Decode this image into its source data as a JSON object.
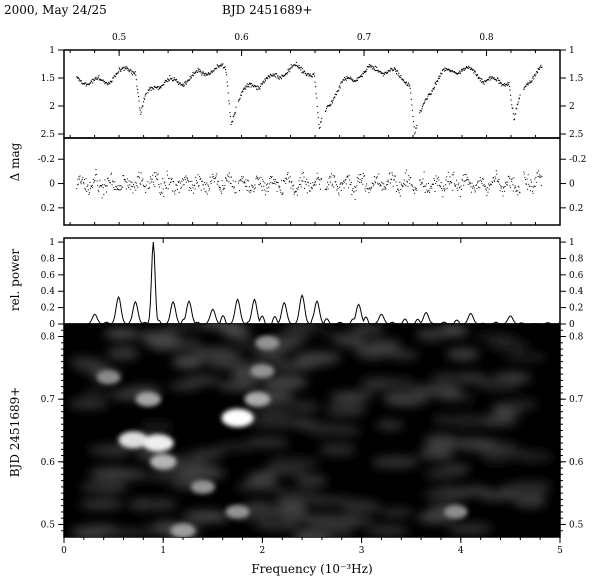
{
  "header": {
    "left": "2000, May 24/25",
    "center": "BJD 2451689+"
  },
  "panel_labels": {
    "dmag": "Δ mag",
    "power": "rel. power",
    "bjd": "BJD 2451689+",
    "frequency": "Frequency (10⁻³Hz)"
  },
  "chart_data": [
    {
      "type": "scatter",
      "panel": "light-curve",
      "x_top_label": "BJD 2451689+",
      "ylabel": "Δ mag",
      "xlim": [
        0.455,
        0.86
      ],
      "ylim": [
        2.5,
        1.0
      ],
      "y_inverted": true,
      "x_ticks": [
        "0.5",
        "0.6",
        "0.7",
        "0.8"
      ],
      "y_ticks": [
        "1",
        "1.5",
        "2",
        "2.5"
      ],
      "segments": [
        [
          0.465,
          0.522
        ],
        [
          0.523,
          0.595
        ],
        [
          0.597,
          0.665
        ],
        [
          0.668,
          0.743
        ],
        [
          0.745,
          0.827
        ],
        [
          0.83,
          0.845
        ]
      ],
      "baseline_mag": 1.45,
      "eclipses": [
        {
          "x": 0.517,
          "depth_mag": 2.25
        },
        {
          "x": 0.591,
          "depth_mag": 2.3
        },
        {
          "x": 0.663,
          "depth_mag": 2.45
        },
        {
          "x": 0.741,
          "depth_mag": 2.4
        },
        {
          "x": 0.822,
          "depth_mag": 2.2
        }
      ]
    },
    {
      "type": "scatter",
      "panel": "residuals",
      "ylabel": "Δ mag",
      "xlim": [
        0.455,
        0.86
      ],
      "ylim": [
        0.3,
        -0.35
      ],
      "y_inverted": true,
      "y_ticks": [
        "-0.2",
        "0",
        "0.2"
      ],
      "scatter_amplitude": 0.15
    },
    {
      "type": "line",
      "panel": "power-spectrum",
      "ylabel": "rel. power",
      "xlim": [
        0,
        5
      ],
      "ylim": [
        0,
        1.05
      ],
      "y_ticks": [
        "0",
        "0.2",
        "0.4",
        "0.6",
        "0.8",
        "1"
      ],
      "peaks": [
        {
          "x": 0.31,
          "y": 0.12
        },
        {
          "x": 0.55,
          "y": 0.33
        },
        {
          "x": 0.72,
          "y": 0.27
        },
        {
          "x": 0.9,
          "y": 1.0
        },
        {
          "x": 1.1,
          "y": 0.27
        },
        {
          "x": 1.26,
          "y": 0.28
        },
        {
          "x": 1.5,
          "y": 0.18
        },
        {
          "x": 1.75,
          "y": 0.3
        },
        {
          "x": 1.92,
          "y": 0.3
        },
        {
          "x": 2.22,
          "y": 0.26
        },
        {
          "x": 2.4,
          "y": 0.35
        },
        {
          "x": 2.55,
          "y": 0.28
        },
        {
          "x": 2.97,
          "y": 0.24
        },
        {
          "x": 3.2,
          "y": 0.12
        },
        {
          "x": 3.65,
          "y": 0.14
        },
        {
          "x": 4.1,
          "y": 0.13
        },
        {
          "x": 4.5,
          "y": 0.1
        }
      ]
    },
    {
      "type": "heatmap",
      "panel": "sliding-periodogram",
      "xlabel": "Frequency (10⁻³Hz)",
      "ylabel": "BJD 2451689+",
      "xlim": [
        0,
        5
      ],
      "ylim": [
        0.48,
        0.82
      ],
      "x_ticks": [
        "0",
        "1",
        "2",
        "3",
        "4",
        "5"
      ],
      "y_ticks": [
        "0.5",
        "0.6",
        "0.7",
        "0.8"
      ],
      "colormap": "black-to-white",
      "bright_spots": [
        {
          "freq": 0.7,
          "bjd": 0.635,
          "power": 0.8
        },
        {
          "freq": 0.95,
          "bjd": 0.63,
          "power": 0.9
        },
        {
          "freq": 1.0,
          "bjd": 0.6,
          "power": 0.55
        },
        {
          "freq": 0.85,
          "bjd": 0.7,
          "power": 0.45
        },
        {
          "freq": 0.45,
          "bjd": 0.735,
          "power": 0.3
        },
        {
          "freq": 1.75,
          "bjd": 0.67,
          "power": 1.0
        },
        {
          "freq": 1.95,
          "bjd": 0.7,
          "power": 0.5
        },
        {
          "freq": 2.0,
          "bjd": 0.745,
          "power": 0.35
        },
        {
          "freq": 2.05,
          "bjd": 0.79,
          "power": 0.35
        },
        {
          "freq": 1.4,
          "bjd": 0.56,
          "power": 0.35
        },
        {
          "freq": 1.75,
          "bjd": 0.52,
          "power": 0.35
        },
        {
          "freq": 1.2,
          "bjd": 0.49,
          "power": 0.4
        },
        {
          "freq": 3.95,
          "bjd": 0.52,
          "power": 0.3
        }
      ]
    }
  ]
}
